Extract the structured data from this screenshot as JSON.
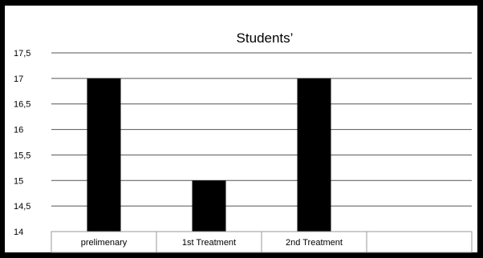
{
  "chart_data": {
    "type": "bar",
    "title": "Students’",
    "categories": [
      "prelimenary",
      "1st Treatment",
      "2nd Treatment",
      ""
    ],
    "values": [
      17,
      15,
      17,
      null
    ],
    "ylim": [
      14,
      17.5
    ],
    "yticks": [
      "14",
      "14,5",
      "15",
      "15,5",
      "16",
      "16,5",
      "17",
      "17,5"
    ],
    "ytick_values": [
      14,
      14.5,
      15,
      15.5,
      16,
      16.5,
      17,
      17.5
    ],
    "grid": true,
    "bar_color": "#000000",
    "gridline_color": "#555555"
  }
}
